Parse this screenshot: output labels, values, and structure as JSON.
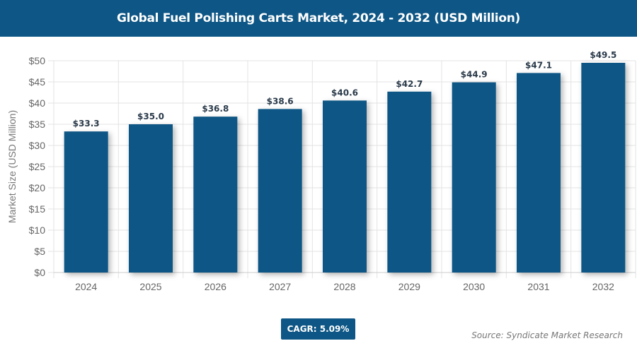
{
  "chart_data": {
    "type": "bar",
    "title": "Global Fuel Polishing Carts Market, 2024 - 2032 (USD Million)",
    "xlabel": "",
    "ylabel": "Market Size (USD Million)",
    "categories": [
      "2024",
      "2025",
      "2026",
      "2027",
      "2028",
      "2029",
      "2030",
      "2031",
      "2032"
    ],
    "values": [
      33.3,
      35.0,
      36.8,
      38.6,
      40.6,
      42.7,
      44.9,
      47.1,
      49.5
    ],
    "data_labels": [
      "$33.3",
      "$35.0",
      "$36.8",
      "$38.6",
      "$40.6",
      "$42.7",
      "$44.9",
      "$47.1",
      "$49.5"
    ],
    "ylim": [
      0,
      50
    ],
    "yticks": [
      0,
      5,
      10,
      15,
      20,
      25,
      30,
      35,
      40,
      45,
      50
    ],
    "ytick_labels": [
      "$0",
      "$5",
      "$10",
      "$15",
      "$20",
      "$25",
      "$30",
      "$35",
      "$40",
      "$45",
      "$50"
    ],
    "grid": true,
    "bar_color": "#0d5685"
  },
  "cagr": "CAGR: 5.09%",
  "source": "Source: Syndicate Market Research"
}
